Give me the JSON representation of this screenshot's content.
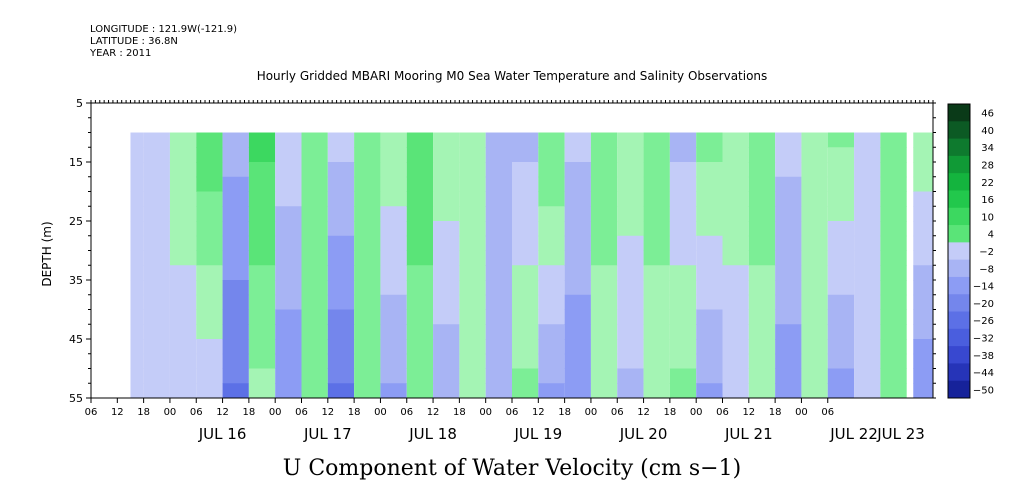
{
  "header": {
    "longitude": "LONGITUDE : 121.9W(-121.9)",
    "latitude": "LATITUDE : 36.8N",
    "year": "YEAR : 2011"
  },
  "chart_data": {
    "type": "heatmap",
    "title": "Hourly Gridded MBARI Mooring M0 Sea Water Temperature and Salinity Observations",
    "xlabel": "U Component of Water Velocity (cm s−1)",
    "ylabel": "DEPTH (m)",
    "ylim": [
      5,
      55
    ],
    "y_ticks": [
      "5",
      "15",
      "25",
      "35",
      "45",
      "55"
    ],
    "y_axis_inverted": true,
    "data_depth_range": [
      10,
      55
    ],
    "x_hour_ticks": [
      "06",
      "12",
      "18",
      "00",
      "06",
      "12",
      "18",
      "00",
      "06",
      "12",
      "18",
      "00",
      "06",
      "12",
      "18",
      "00",
      "06",
      "12",
      "18",
      "00",
      "06",
      "12",
      "18",
      "00",
      "06",
      "12",
      "18",
      "00",
      "06"
    ],
    "x_date_labels": [
      "JUL 16",
      "JUL 17",
      "JUL 18",
      "JUL 19",
      "JUL 20",
      "JUL 21",
      "JUL 22",
      "JUL 23"
    ],
    "x_range": [
      "2011-07-15 06:00",
      "2011-07-23 06:00"
    ],
    "data_start": "2011-07-15 15:00",
    "colorbar": {
      "labels": [
        "46",
        "40",
        "34",
        "28",
        "22",
        "16",
        "10",
        "4",
        "−2",
        "−8",
        "−14",
        "−20",
        "−26",
        "−32",
        "−38",
        "−44",
        "−50"
      ],
      "range": [
        -50,
        50
      ],
      "negative_color": "#8c9cf4",
      "positive_color": "#5cec8c"
    },
    "time_columns": [
      {
        "t": "07-15 15:00",
        "surface": -4,
        "bottom": -4
      },
      {
        "t": "07-15 21:00",
        "surface": -4,
        "bottom": -2
      },
      {
        "t": "07-16 03:00",
        "surface": 4,
        "bottom": -4
      },
      {
        "t": "07-16 09:00",
        "surface": 14,
        "bottom": -4
      },
      {
        "t": "07-16 15:00",
        "surface": -8,
        "bottom": -20
      },
      {
        "t": "07-16 21:00",
        "surface": 16,
        "bottom": 4
      },
      {
        "t": "07-17 03:00",
        "surface": -2,
        "bottom": -14
      },
      {
        "t": "07-17 09:00",
        "surface": 10,
        "bottom": 6
      },
      {
        "t": "07-17 15:00",
        "surface": -4,
        "bottom": -20
      },
      {
        "t": "07-17 21:00",
        "surface": 8,
        "bottom": 6
      },
      {
        "t": "07-18 03:00",
        "surface": 4,
        "bottom": -10
      },
      {
        "t": "07-18 09:00",
        "surface": 14,
        "bottom": 6
      },
      {
        "t": "07-18 15:00",
        "surface": 4,
        "bottom": -8
      },
      {
        "t": "07-18 21:00",
        "surface": 4,
        "bottom": 4
      },
      {
        "t": "07-19 03:00",
        "surface": -8,
        "bottom": -8
      },
      {
        "t": "07-19 09:00",
        "surface": -6,
        "bottom": 6
      },
      {
        "t": "07-19 15:00",
        "surface": 10,
        "bottom": -10
      },
      {
        "t": "07-19 21:00",
        "surface": -4,
        "bottom": -14
      },
      {
        "t": "07-20 03:00",
        "surface": 6,
        "bottom": 4
      },
      {
        "t": "07-20 09:00",
        "surface": 4,
        "bottom": -6
      },
      {
        "t": "07-20 15:00",
        "surface": 6,
        "bottom": 4
      },
      {
        "t": "07-20 21:00",
        "surface": -6,
        "bottom": 6
      },
      {
        "t": "07-21 03:00",
        "surface": 6,
        "bottom": -10
      },
      {
        "t": "07-21 09:00",
        "surface": 4,
        "bottom": -4
      },
      {
        "t": "07-21 15:00",
        "surface": 6,
        "bottom": 4
      },
      {
        "t": "07-21 21:00",
        "surface": -4,
        "bottom": -12
      },
      {
        "t": "07-22 03:00",
        "surface": 4,
        "bottom": 4
      },
      {
        "t": "07-22 09:00",
        "surface": 6,
        "bottom": -12
      },
      {
        "t": "07-22 15:00",
        "surface": -4,
        "bottom": -4
      },
      {
        "t": "07-22 21:00",
        "surface": 6,
        "bottom": 6
      },
      {
        "t": "07-23 03:00",
        "surface": 4,
        "bottom": -14
      }
    ]
  }
}
